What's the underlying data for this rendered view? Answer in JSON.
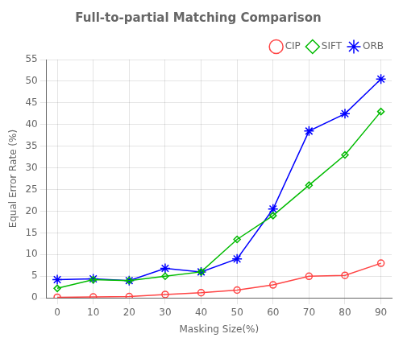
{
  "chart_data": {
    "type": "line",
    "title": "Full-to-partial Matching Comparison",
    "xlabel": "Masking Size(%)",
    "ylabel": "Equal Error Rate (%)",
    "x": [
      0,
      10,
      20,
      30,
      40,
      50,
      60,
      70,
      80,
      90
    ],
    "series": [
      {
        "name": "CIP",
        "color": "#FF4444",
        "marker": "circle",
        "line_style": "solid",
        "values": [
          0.15,
          0.2,
          0.3,
          0.8,
          1.2,
          1.8,
          3.0,
          5.0,
          5.2,
          8.0
        ]
      },
      {
        "name": "SIFT",
        "color": "#00BB00",
        "marker": "diamond",
        "line_style": "solid",
        "values": [
          2.2,
          4.2,
          4.0,
          5.0,
          6.0,
          13.5,
          19.0,
          26.0,
          33.0,
          43.0
        ]
      },
      {
        "name": "ORB",
        "color": "#0000FF",
        "marker": "star",
        "line_style": "solid",
        "values": [
          4.2,
          4.4,
          4.0,
          6.8,
          6.0,
          9.0,
          20.5,
          38.5,
          42.5,
          50.5
        ]
      }
    ],
    "xlim": [
      -3,
      93
    ],
    "xticks": [
      0,
      10,
      20,
      30,
      40,
      50,
      60,
      70,
      80,
      90
    ],
    "ylim": [
      0,
      55
    ],
    "yticks": [
      0,
      5,
      10,
      15,
      20,
      25,
      30,
      35,
      40,
      45,
      50,
      55
    ],
    "grid": true,
    "legend": "upper right"
  }
}
